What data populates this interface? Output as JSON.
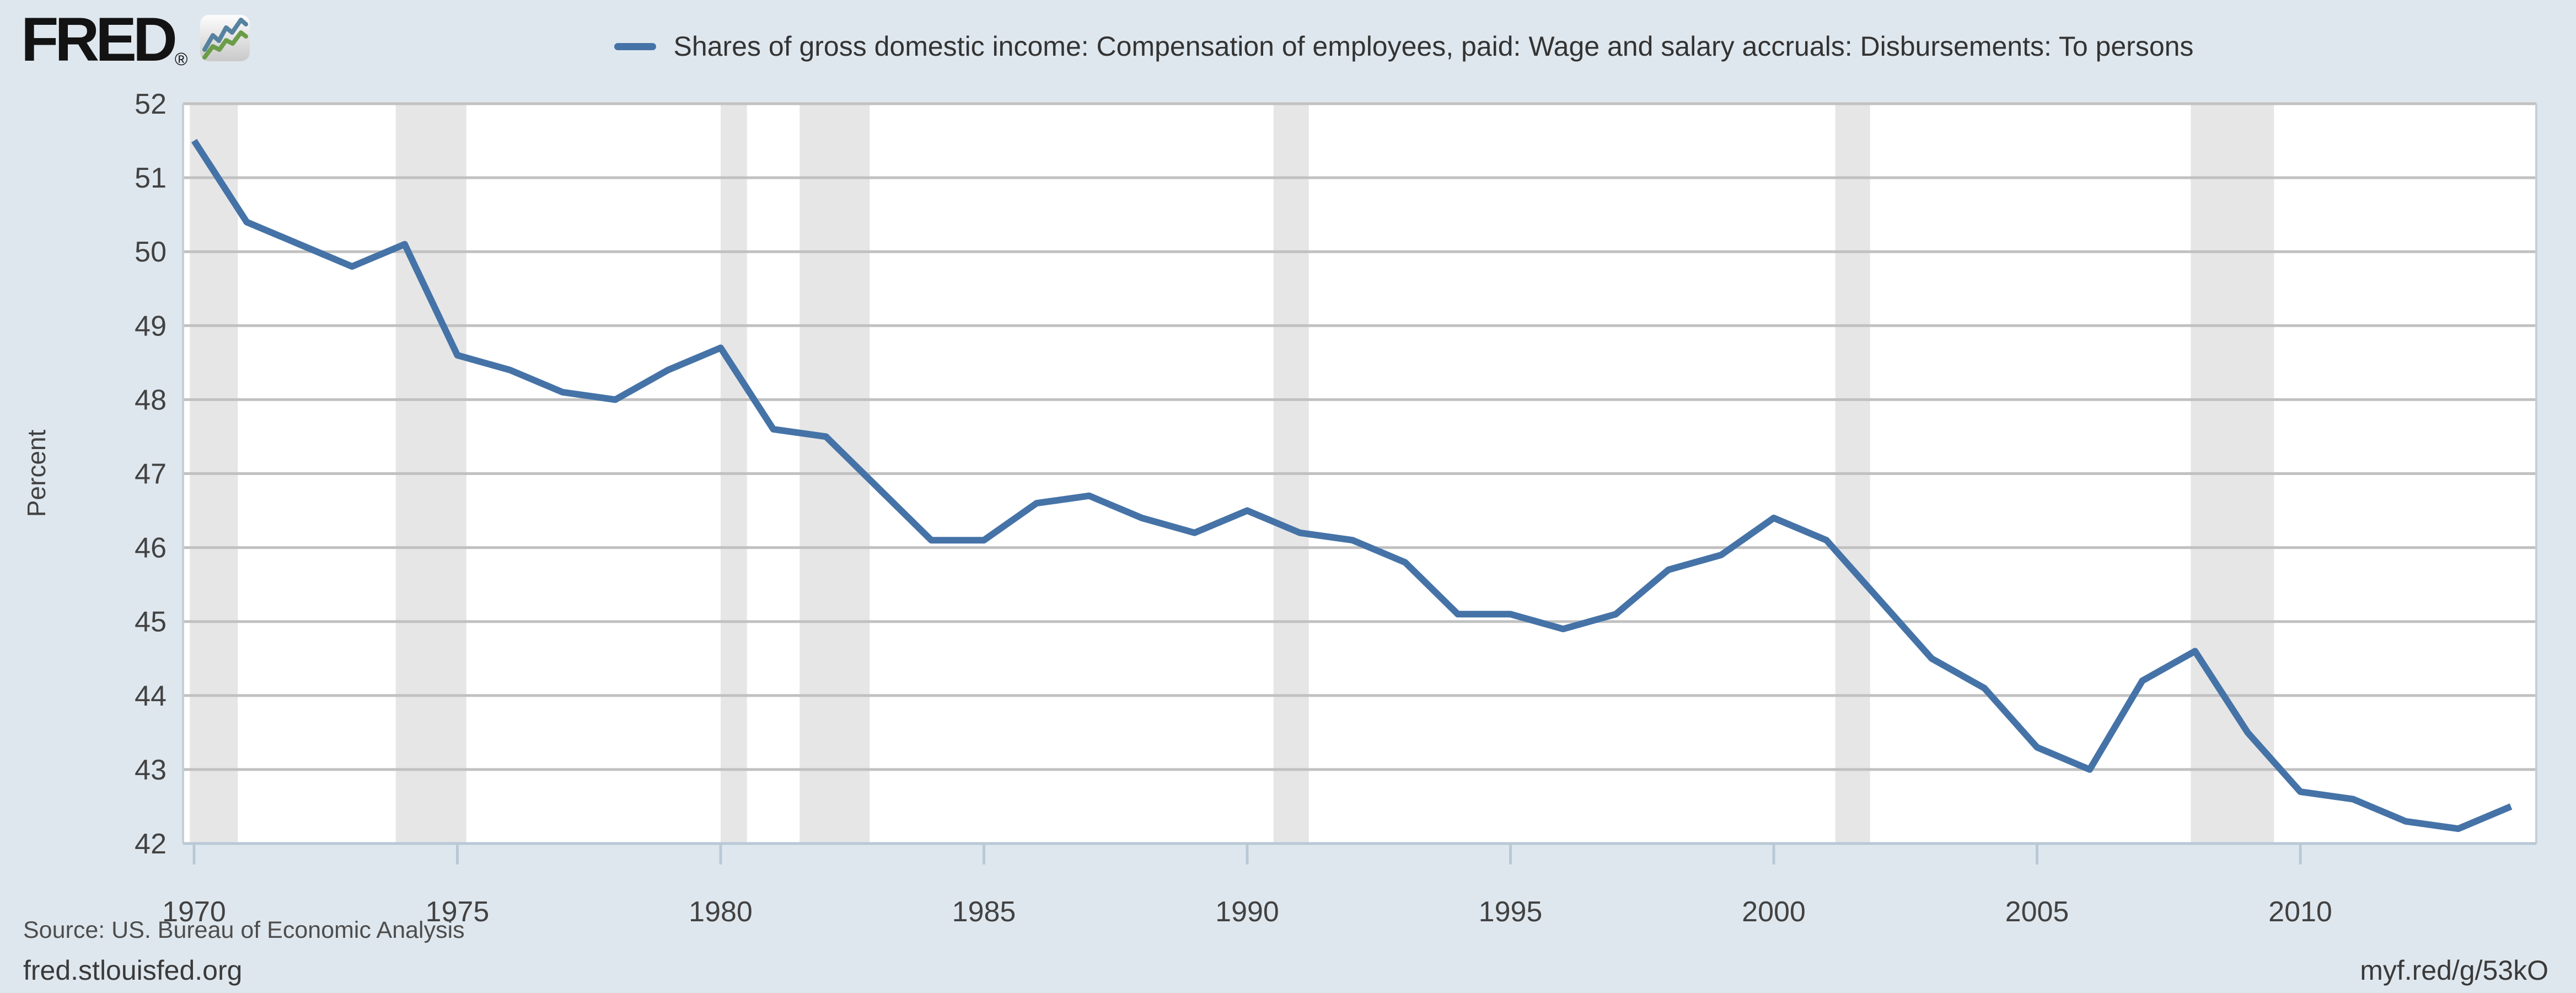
{
  "header": {
    "logo_text": "FRED",
    "registered_mark": "®",
    "legend_label": "Shares of gross domestic income: Compensation of employees, paid: Wage and salary accruals: Disbursements: To persons"
  },
  "y_axis": {
    "title": "Percent",
    "ticks": [
      42,
      43,
      44,
      45,
      46,
      47,
      48,
      49,
      50,
      51,
      52
    ]
  },
  "x_axis": {
    "tick_years": [
      1970,
      1975,
      1980,
      1985,
      1990,
      1995,
      2000,
      2005,
      2010
    ]
  },
  "footer": {
    "source": "Source: US. Bureau of Economic Analysis",
    "site": "fred.stlouisfed.org",
    "short_url": "myf.red/g/53kO"
  },
  "colors": {
    "background": "#dfe7ee",
    "plot_background": "#ffffff",
    "line": "#4573a7",
    "recession_band": "#e6e6e6",
    "gridline": "#c1c1c1",
    "axis_line": "#b9c8d6",
    "plot_border": "#c3d0da",
    "tick_label": "#424242",
    "logo_blue": "#55829f",
    "logo_green": "#6b9d49"
  },
  "chart_data": {
    "type": "line",
    "title": "Shares of gross domestic income: Compensation of employees, paid: Wage and salary accruals: Disbursements: To persons",
    "xlabel": "",
    "ylabel": "Percent",
    "ylim": [
      42,
      52
    ],
    "xlim": [
      1969.76,
      2014.5
    ],
    "grid": "horizontal",
    "legend_position": "top-center",
    "x": [
      1970,
      1971,
      1972,
      1973,
      1974,
      1975,
      1976,
      1977,
      1978,
      1979,
      1980,
      1981,
      1982,
      1983,
      1984,
      1985,
      1986,
      1987,
      1988,
      1989,
      1990,
      1991,
      1992,
      1993,
      1994,
      1995,
      1996,
      1997,
      1998,
      1999,
      2000,
      2001,
      2002,
      2003,
      2004,
      2005,
      2006,
      2007,
      2008,
      2009,
      2010,
      2011,
      2012,
      2013,
      2014
    ],
    "values": [
      51.5,
      50.4,
      50.1,
      49.8,
      50.1,
      48.6,
      48.4,
      48.1,
      48.0,
      48.4,
      48.7,
      47.6,
      47.5,
      46.8,
      46.1,
      46.1,
      46.6,
      46.7,
      46.4,
      46.2,
      46.5,
      46.2,
      46.1,
      45.8,
      45.1,
      45.1,
      44.9,
      45.1,
      45.7,
      45.9,
      46.4,
      46.1,
      45.3,
      44.5,
      44.1,
      43.3,
      43.0,
      44.2,
      44.6,
      43.5,
      42.7,
      42.6,
      42.3,
      42.2,
      42.5
    ],
    "recessions": [
      [
        1969.92,
        1970.83
      ],
      [
        1973.83,
        1975.17
      ],
      [
        1980.0,
        1980.5
      ],
      [
        1981.5,
        1982.83
      ],
      [
        1990.5,
        1991.17
      ],
      [
        2001.17,
        2001.83
      ],
      [
        2007.92,
        2009.5
      ]
    ]
  }
}
